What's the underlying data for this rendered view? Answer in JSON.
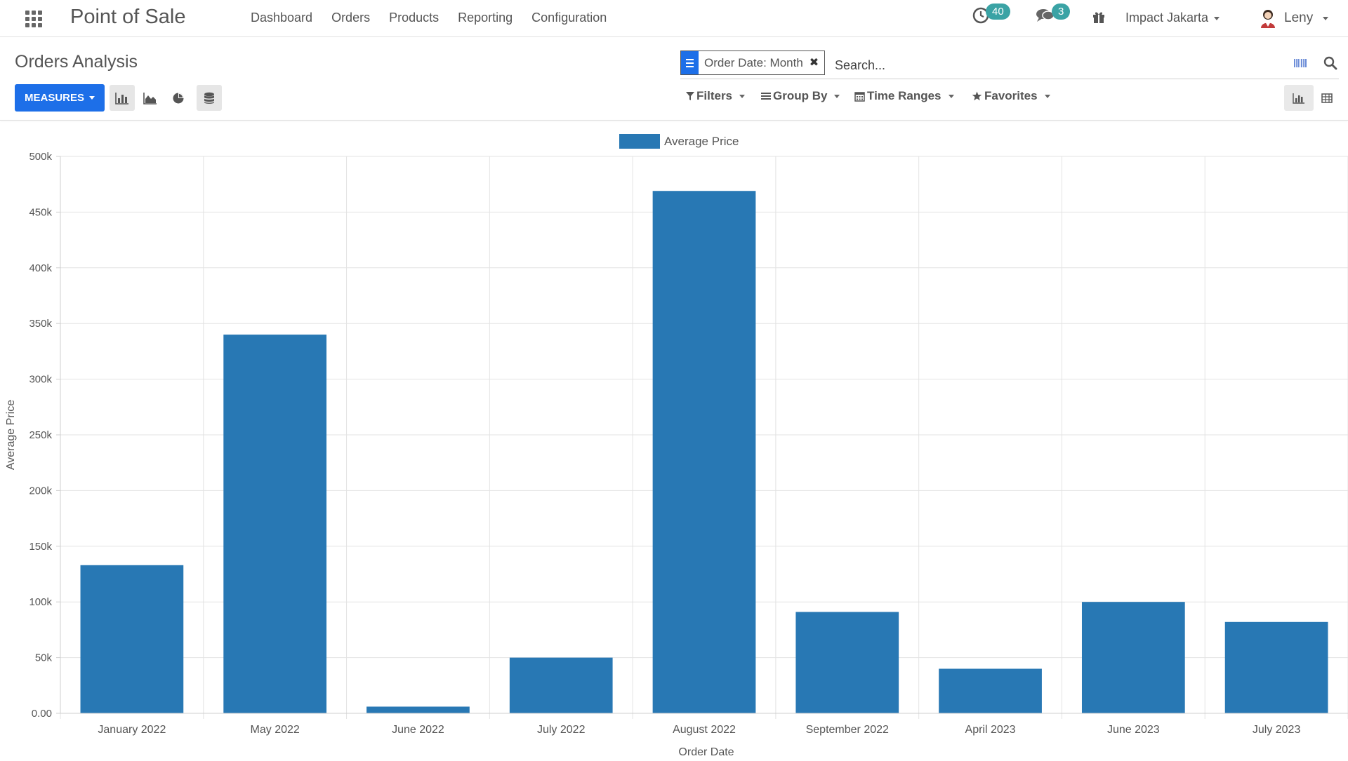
{
  "navbar": {
    "app_title": "Point of Sale",
    "menu": [
      "Dashboard",
      "Orders",
      "Products",
      "Reporting",
      "Configuration"
    ],
    "activity_count": "40",
    "message_count": "3",
    "company": "Impact Jakarta",
    "user": "Leny"
  },
  "control_panel": {
    "breadcrumb": "Orders Analysis",
    "measures_label": "MEASURES",
    "facet_value": "Order Date: Month",
    "search_placeholder": "Search...",
    "filters_label": "Filters",
    "groupby_label": "Group By",
    "timeranges_label": "Time Ranges",
    "favorites_label": "Favorites"
  },
  "colors": {
    "accent": "#1d6fe8",
    "bar": "#2878b4",
    "badge": "#3aa3a5"
  },
  "chart_data": {
    "type": "bar",
    "categories": [
      "January 2022",
      "May 2022",
      "June 2022",
      "July 2022",
      "August 2022",
      "September 2022",
      "April 2023",
      "June 2023",
      "July 2023"
    ],
    "series": [
      {
        "name": "Average Price",
        "values": [
          133000,
          340000,
          6000,
          50000,
          469000,
          91000,
          40000,
          100000,
          82000
        ]
      }
    ],
    "xlabel": "Order Date",
    "ylabel": "Average Price",
    "ylim": [
      0,
      500000
    ],
    "yticks": [
      "0.00",
      "50k",
      "100k",
      "150k",
      "200k",
      "250k",
      "300k",
      "350k",
      "400k",
      "450k",
      "500k"
    ],
    "grid": true,
    "legend": "top-center"
  }
}
